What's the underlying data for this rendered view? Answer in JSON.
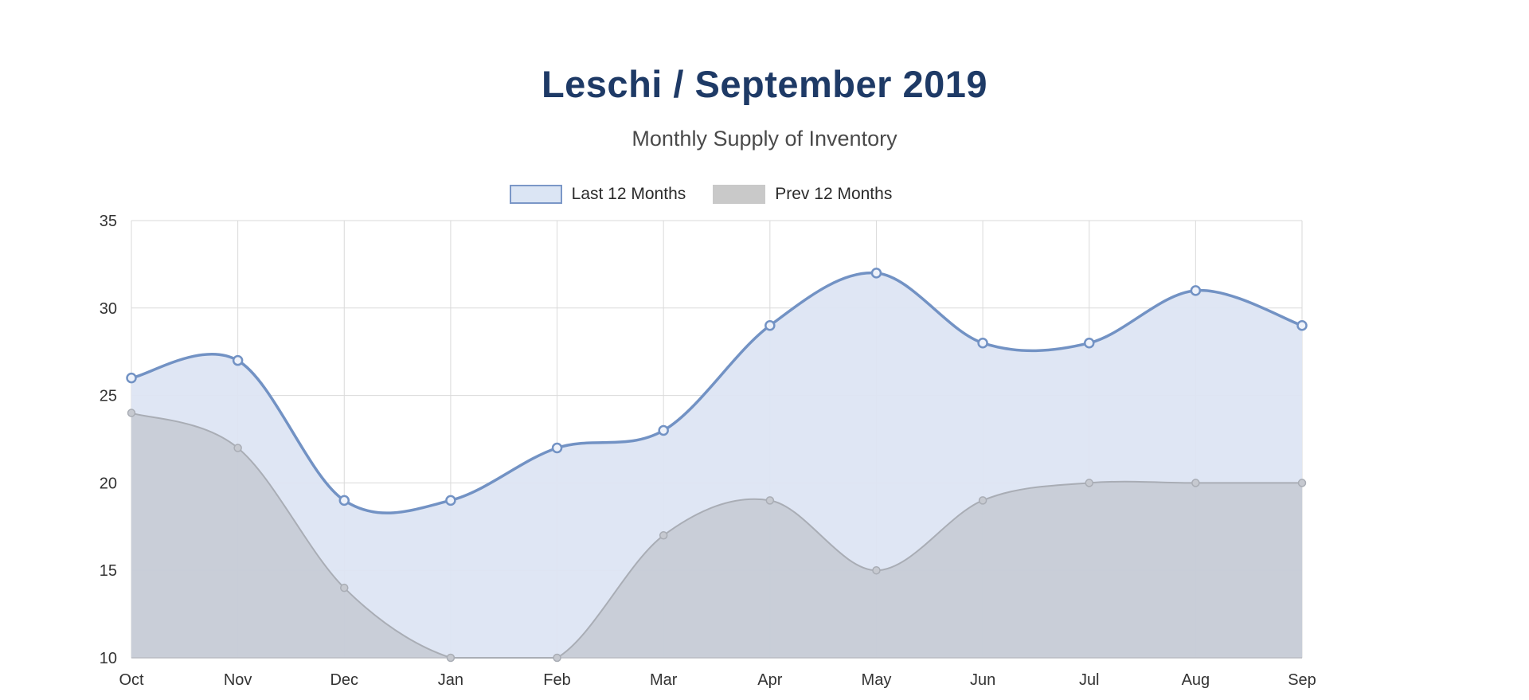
{
  "chart_data": {
    "type": "area",
    "title": "Leschi / September 2019",
    "subtitle": "Monthly Supply of Inventory",
    "categories": [
      "Oct",
      "Nov",
      "Dec",
      "Jan",
      "Feb",
      "Mar",
      "Apr",
      "May",
      "Jun",
      "Jul",
      "Aug",
      "Sep"
    ],
    "series": [
      {
        "name": "Last 12 Months",
        "values": [
          26,
          27,
          19,
          19,
          22,
          23,
          29,
          32,
          28,
          28,
          31,
          29
        ],
        "line_color": "#7292c4",
        "fill_color": "#dde5f3",
        "marker_fill": "#eef2fa"
      },
      {
        "name": "Prev 12 Months",
        "values": [
          24,
          22,
          14,
          10,
          10,
          17,
          19,
          15,
          19,
          20,
          20,
          20
        ],
        "line_color": "#a9adb5",
        "fill_color": "#b7bac1",
        "marker_fill": "#c6c9d0"
      }
    ],
    "ylim": [
      10,
      35
    ],
    "yticks": [
      10,
      15,
      20,
      25,
      30,
      35
    ],
    "xlabel": "",
    "ylabel": "",
    "grid": true,
    "legend_position": "top",
    "colors": {
      "title": "#1e3a66",
      "subtitle": "#4a4a4a",
      "axis_label": "#333333",
      "gridline": "#dadada",
      "axis_line": "#b9bcc2",
      "legend_swatch_last_fill": "#dbe5f4",
      "legend_swatch_last_border": "#7b97c7",
      "legend_swatch_prev_fill": "#c9c9c9"
    }
  }
}
